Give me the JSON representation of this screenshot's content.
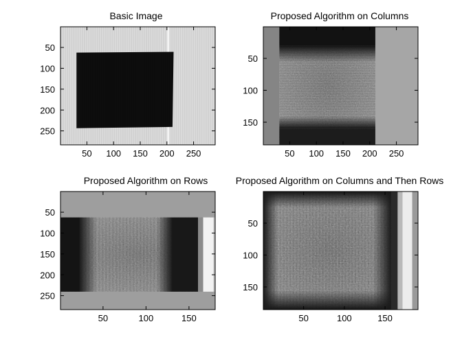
{
  "chart_data": [
    {
      "type": "image",
      "title": "Basic Image",
      "xlim": [
        0.5,
        290.5
      ],
      "ylim": [
        0.5,
        283.5
      ],
      "y_reversed": true,
      "xticks": [
        50,
        100,
        150,
        200,
        250
      ],
      "yticks": [
        50,
        100,
        150,
        200,
        250
      ],
      "xlabel": "",
      "ylabel": "",
      "content": "light gray background with dark square block spanning x 30-210, y 62-240"
    },
    {
      "type": "image",
      "title": "Proposed Algorithm on Columns",
      "xlim": [
        0.5,
        290.5
      ],
      "ylim": [
        0.5,
        185.5
      ],
      "y_reversed": true,
      "xticks": [
        50,
        100,
        150,
        200,
        250
      ],
      "yticks": [
        50,
        100,
        150
      ],
      "xlabel": "",
      "ylabel": "",
      "content": "gray background, processed region x 30-210: dark bands top and bottom, noisy light texture center"
    },
    {
      "type": "image",
      "title": "Proposed Algorithm on Rows",
      "xlim": [
        0.5,
        180.5
      ],
      "ylim": [
        0.5,
        283.5
      ],
      "y_reversed": true,
      "xticks": [
        50,
        100,
        150
      ],
      "yticks": [
        50,
        100,
        150,
        200,
        250
      ],
      "xlabel": "",
      "ylabel": "",
      "content": "gray background, processed region y 62-240: dark bands left and right, noisy center, bright strip near x 165-178"
    },
    {
      "type": "image",
      "title": "Proposed Algorithm on Columns and Then Rows",
      "xlim": [
        0.5,
        190.5
      ],
      "ylim": [
        0.5,
        185.5
      ],
      "y_reversed": true,
      "xticks": [
        50,
        100,
        150
      ],
      "yticks": [
        50,
        100,
        150
      ],
      "xlabel": "",
      "ylabel": "",
      "content": "noisy textured image with dark edges, bright strip near x 165-185"
    }
  ]
}
